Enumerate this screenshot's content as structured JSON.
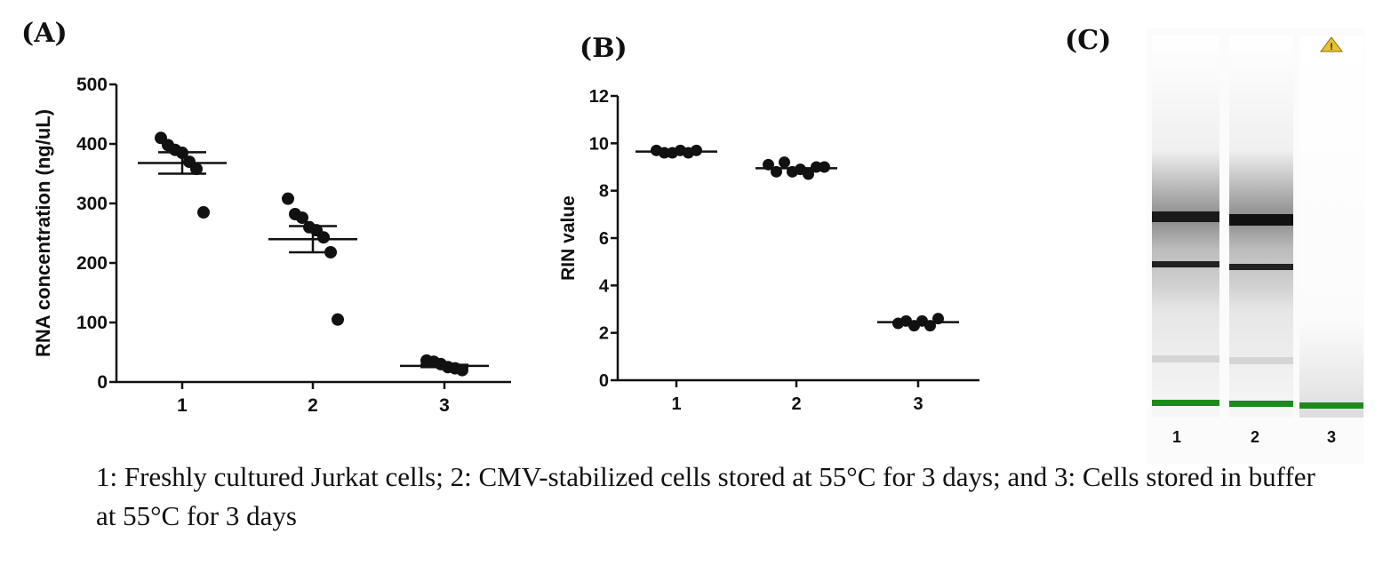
{
  "panel_labels": {
    "a": "(A)",
    "b": "(B)",
    "c": "(C)"
  },
  "caption": "1: Freshly cultured Jurkat cells; 2: CMV-stabilized cells stored at 55°C for 3 days; and 3: Cells stored in buffer at 55°C for 3 days",
  "chart_data": [
    {
      "type": "scatter",
      "panel": "(A)",
      "ylabel": "RNA concentration (ng/uL)",
      "xlabel": "",
      "categories": [
        "1",
        "2",
        "3"
      ],
      "ylim": [
        0,
        500
      ],
      "yticks": [
        0,
        100,
        200,
        300,
        400,
        500
      ],
      "groups": [
        {
          "category": "1",
          "points": [
            410,
            398,
            390,
            385,
            370,
            358,
            285
          ],
          "mean": 368,
          "sem_low": 350,
          "sem_high": 386
        },
        {
          "category": "2",
          "points": [
            308,
            282,
            276,
            260,
            255,
            243,
            218,
            105
          ],
          "mean": 240,
          "sem_low": 218,
          "sem_high": 262
        },
        {
          "category": "3",
          "points": [
            36,
            34,
            30,
            25,
            23,
            20
          ],
          "mean": 27,
          "sem_low": 25,
          "sem_high": 29
        }
      ],
      "grid": false
    },
    {
      "type": "scatter",
      "panel": "(B)",
      "ylabel": "RIN value",
      "xlabel": "",
      "categories": [
        "1",
        "2",
        "3"
      ],
      "ylim": [
        0,
        12
      ],
      "yticks": [
        0,
        2,
        4,
        6,
        8,
        10,
        12
      ],
      "groups": [
        {
          "category": "1",
          "points": [
            9.7,
            9.6,
            9.6,
            9.7,
            9.6,
            9.7
          ],
          "mean": 9.65
        },
        {
          "category": "2",
          "points": [
            9.1,
            8.8,
            9.2,
            8.8,
            8.9,
            8.7,
            9.0,
            9.0
          ],
          "mean": 8.95
        },
        {
          "category": "3",
          "points": [
            2.4,
            2.5,
            2.3,
            2.5,
            2.3,
            2.6
          ],
          "mean": 2.45
        }
      ],
      "grid": false
    }
  ],
  "gel": {
    "lanes": [
      "1",
      "2",
      "3"
    ],
    "warning_icon": "warning-triangle-icon",
    "marker_color": "#1e8a1e"
  }
}
